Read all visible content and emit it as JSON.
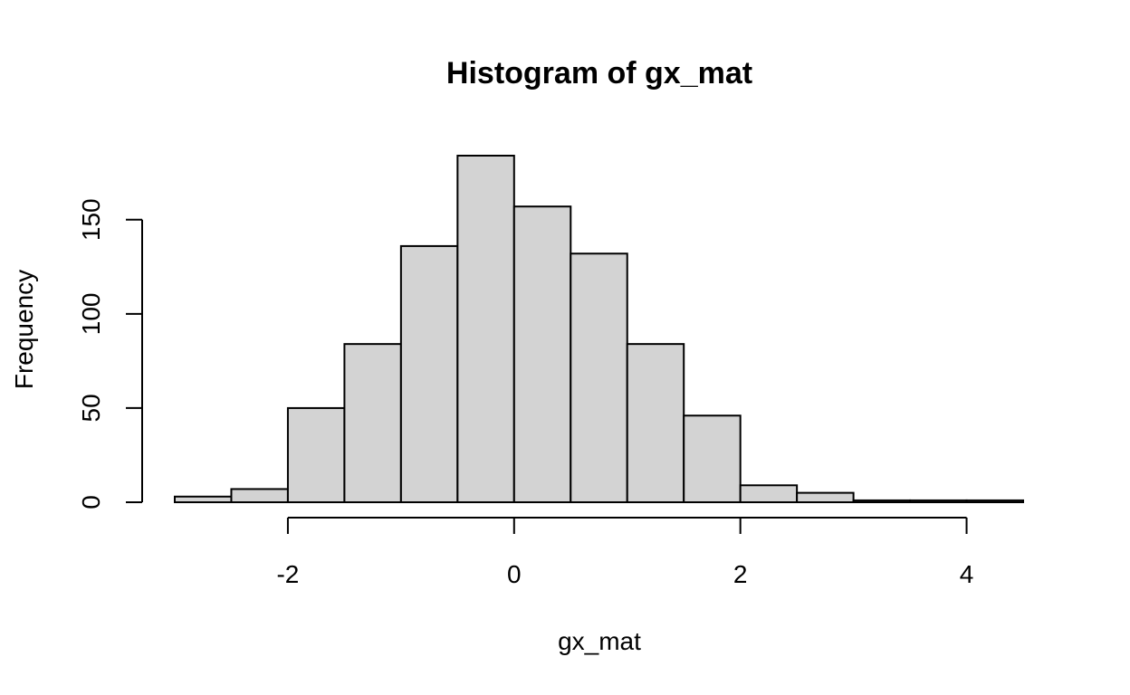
{
  "chart_data": {
    "type": "bar",
    "title": "Histogram of gx_mat",
    "xlabel": "gx_mat",
    "ylabel": "Frequency",
    "bin_edges": [
      -3,
      -2.5,
      -2,
      -1.5,
      -1,
      -0.5,
      0,
      0.5,
      1,
      1.5,
      2,
      2.5,
      3,
      3.5,
      4,
      4.5
    ],
    "values": [
      3,
      7,
      50,
      84,
      136,
      184,
      157,
      132,
      84,
      46,
      9,
      5,
      1,
      1,
      1
    ],
    "xlim": [
      -3,
      4.5
    ],
    "ylim": [
      0,
      184
    ],
    "xticks": [
      -2,
      0,
      2,
      4
    ],
    "xtick_labels": [
      "-2",
      "0",
      "2",
      "4"
    ],
    "yticks": [
      0,
      50,
      100,
      150
    ],
    "ytick_labels": [
      "0",
      "50",
      "100",
      "150"
    ],
    "bar_color": "#d3d3d3",
    "grid": false
  }
}
